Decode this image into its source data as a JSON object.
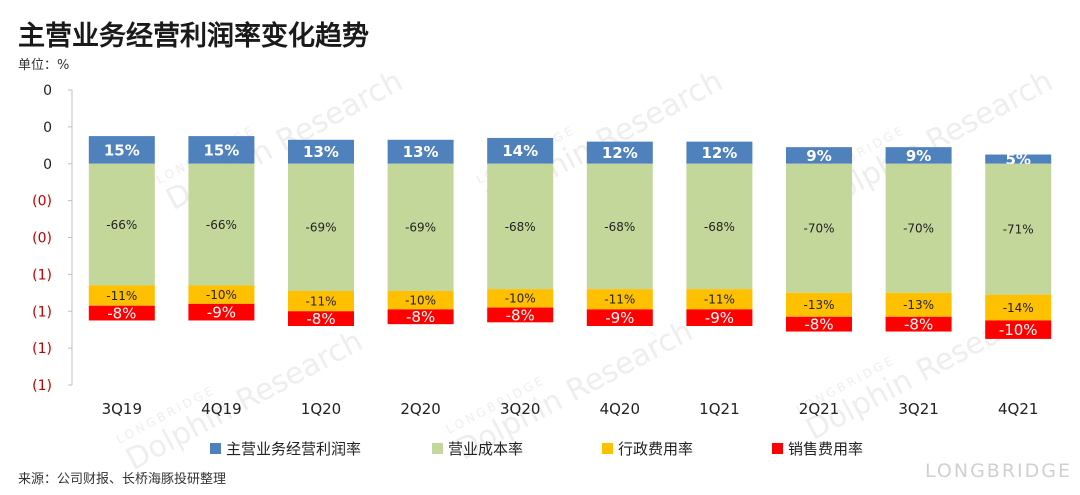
{
  "title": "主营业务经营利润率变化趋势",
  "unit_label": "单位：%",
  "source_label": "来源：公司财报、长桥海豚投研整理",
  "brand_label": "LONGBRIDGE",
  "watermark": {
    "main": "Dolphin Research",
    "sub": "LONGBRIDGE"
  },
  "colors": {
    "profit": "#4f81bd",
    "cost": "#c4d79b",
    "admin": "#ffc000",
    "sales": "#ff0000"
  },
  "chart_data": {
    "type": "bar",
    "stacked": true,
    "title": "主营业务经营利润率变化趋势",
    "ylabel": "单位：%",
    "y_tick_labels": [
      "0",
      "0",
      "0",
      "(0)",
      "(0)",
      "(1)",
      "(1)",
      "(1)",
      "(1)"
    ],
    "ylim": [
      -120,
      40
    ],
    "categories": [
      "3Q19",
      "4Q19",
      "1Q20",
      "2Q20",
      "3Q20",
      "4Q20",
      "1Q21",
      "2Q21",
      "3Q21",
      "4Q21"
    ],
    "series": [
      {
        "key": "profit",
        "name": "主营业务经营利润率",
        "values": [
          15,
          15,
          13,
          13,
          14,
          12,
          12,
          9,
          9,
          5
        ],
        "labels": [
          "15%",
          "15%",
          "13%",
          "13%",
          "14%",
          "12%",
          "12%",
          "9%",
          "9%",
          "5%"
        ]
      },
      {
        "key": "cost",
        "name": "营业成本率",
        "values": [
          -66,
          -66,
          -69,
          -69,
          -68,
          -68,
          -68,
          -70,
          -70,
          -71
        ],
        "labels": [
          "-66%",
          "-66%",
          "-69%",
          "-69%",
          "-68%",
          "-68%",
          "-68%",
          "-70%",
          "-70%",
          "-71%"
        ]
      },
      {
        "key": "admin",
        "name": "行政费用率",
        "values": [
          -11,
          -10,
          -11,
          -10,
          -10,
          -11,
          -11,
          -13,
          -13,
          -14
        ],
        "labels": [
          "-11%",
          "-10%",
          "-11%",
          "-10%",
          "-10%",
          "-11%",
          "-11%",
          "-13%",
          "-13%",
          "-14%"
        ]
      },
      {
        "key": "sales",
        "name": "销售费用率",
        "values": [
          -8,
          -9,
          -8,
          -8,
          -8,
          -9,
          -9,
          -8,
          -8,
          -10
        ],
        "labels": [
          "-8%",
          "-9%",
          "-8%",
          "-8%",
          "-8%",
          "-9%",
          "-9%",
          "-8%",
          "-8%",
          "-10%"
        ]
      }
    ],
    "legend_position": "bottom"
  }
}
